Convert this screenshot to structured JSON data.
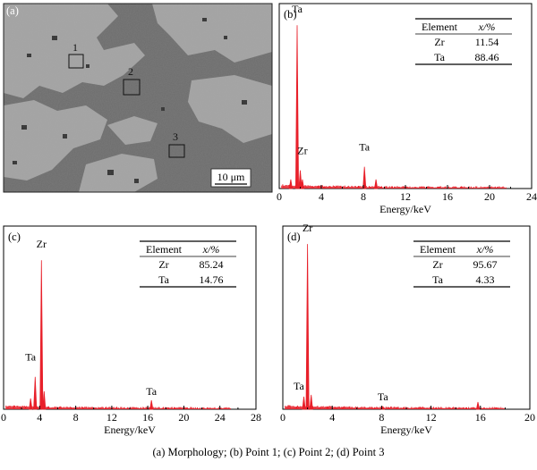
{
  "caption": "(a) Morphology; (b) Point 1; (c) Point 2; (d) Point 3",
  "chart_data": [
    {
      "type": "image",
      "panel_label": "(a)",
      "markers": [
        "1",
        "2",
        "3"
      ],
      "scale_bar_text": "10 μm",
      "colors": {
        "matrix": "#6c6c6c",
        "bright_phase": "#a2a2a2",
        "dark_spots": "#2f2f2f"
      }
    },
    {
      "type": "spectrum",
      "panel_label": "(b)",
      "xlabel": "Energy/keV",
      "ylabel": "",
      "xlim": [
        0,
        24
      ],
      "xticks": [
        0,
        4,
        8,
        12,
        16,
        20,
        24
      ],
      "table": {
        "headers": [
          "Element",
          "x/%"
        ],
        "rows": [
          [
            "Zr",
            "11.54"
          ],
          [
            "Ta",
            "88.46"
          ]
        ]
      },
      "peak_labels": [
        {
          "text": "Ta",
          "x": 1.7,
          "y": 0.96
        },
        {
          "text": "Zr",
          "x": 2.2,
          "y": 0.18
        },
        {
          "text": "Ta",
          "x": 8.1,
          "y": 0.2
        }
      ],
      "peaks": [
        {
          "x": 1.1,
          "y": 0.05
        },
        {
          "x": 1.7,
          "y": 0.9
        },
        {
          "x": 2.0,
          "y": 0.1
        },
        {
          "x": 2.2,
          "y": 0.05
        },
        {
          "x": 8.1,
          "y": 0.12
        },
        {
          "x": 9.2,
          "y": 0.05
        }
      ],
      "color": "#e8202a"
    },
    {
      "type": "spectrum",
      "panel_label": "(c)",
      "xlabel": "Energy/keV",
      "ylabel": "",
      "xlim": [
        0,
        28
      ],
      "xticks": [
        0,
        4,
        8,
        12,
        16,
        20,
        24,
        28
      ],
      "table": {
        "headers": [
          "Element",
          "x/%"
        ],
        "rows": [
          [
            "Zr",
            "85.24"
          ],
          [
            "Ta",
            "14.76"
          ]
        ]
      },
      "peak_labels": [
        {
          "text": "Zr",
          "x": 4.2,
          "y": 0.89
        },
        {
          "text": "Ta",
          "x": 3.0,
          "y": 0.26
        },
        {
          "text": "Ta",
          "x": 16.4,
          "y": 0.07
        }
      ],
      "peaks": [
        {
          "x": 3.0,
          "y": 0.06
        },
        {
          "x": 3.5,
          "y": 0.18
        },
        {
          "x": 4.2,
          "y": 0.83
        },
        {
          "x": 4.5,
          "y": 0.1
        },
        {
          "x": 16.4,
          "y": 0.05
        }
      ],
      "color": "#e8202a"
    },
    {
      "type": "spectrum",
      "panel_label": "(d)",
      "xlabel": "Energy/keV",
      "ylabel": "",
      "xlim": [
        0,
        20
      ],
      "xticks": [
        0,
        4,
        8,
        12,
        16,
        20
      ],
      "table": {
        "headers": [
          "Element",
          "x/%"
        ],
        "rows": [
          [
            "Zr",
            "95.67"
          ],
          [
            "Ta",
            "4.33"
          ]
        ]
      },
      "peak_labels": [
        {
          "text": "Zr",
          "x": 2.0,
          "y": 0.98
        },
        {
          "text": "Ta",
          "x": 1.3,
          "y": 0.1
        },
        {
          "text": "Ta",
          "x": 8.1,
          "y": 0.04
        }
      ],
      "peaks": [
        {
          "x": 1.7,
          "y": 0.07
        },
        {
          "x": 2.0,
          "y": 0.92
        },
        {
          "x": 2.3,
          "y": 0.08
        },
        {
          "x": 8.1,
          "y": 0.015
        },
        {
          "x": 15.8,
          "y": 0.04
        }
      ],
      "color": "#e8202a"
    }
  ]
}
